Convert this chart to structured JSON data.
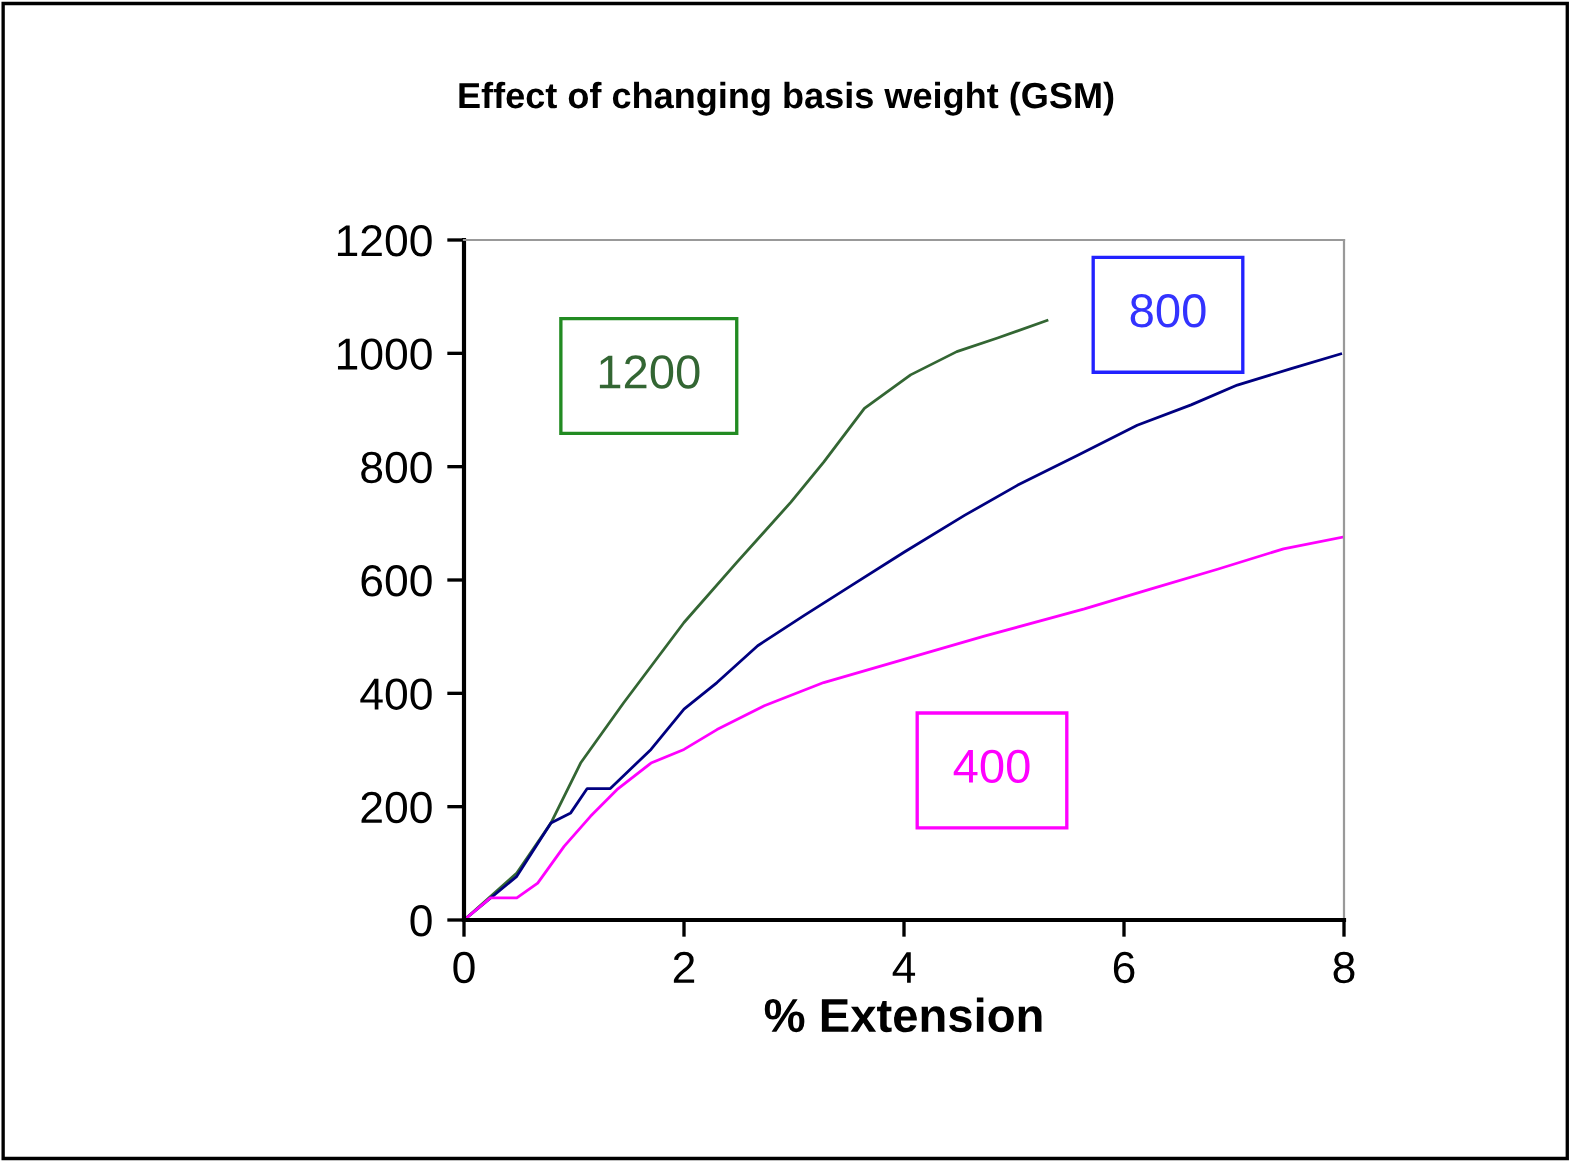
{
  "chart_data": {
    "type": "line",
    "title": "Effect of changing basis weight (GSM)",
    "xlabel": "% Extension",
    "xlim": [
      0,
      8
    ],
    "xticks": [
      0,
      2,
      4,
      6,
      8
    ],
    "ylim": [
      0,
      1200
    ],
    "yticks": [
      0,
      200,
      400,
      600,
      800,
      1000,
      1200
    ],
    "grid": false,
    "legend": false,
    "marker": "none",
    "line_style": "solid",
    "series": [
      {
        "name": "1200",
        "color": "#336633",
        "x": [
          0,
          0.48,
          0.79,
          1.06,
          1.45,
          2.0,
          2.48,
          2.97,
          3.27,
          3.64,
          4.06,
          4.48,
          4.85,
          5.3
        ],
        "values": [
          0,
          83,
          171,
          277,
          383,
          525,
          631,
          737,
          808,
          903,
          962,
          1003,
          1027,
          1058
        ]
      },
      {
        "name": "800",
        "color": "#000080",
        "x": [
          0,
          0.48,
          0.79,
          0.97,
          1.12,
          1.33,
          1.7,
          2.0,
          2.3,
          2.67,
          3.09,
          3.52,
          4.0,
          4.55,
          5.03,
          5.58,
          6.12,
          6.61,
          7.03,
          7.52,
          7.97
        ],
        "values": [
          0,
          77,
          171,
          189,
          232,
          232,
          301,
          372,
          419,
          484,
          537,
          590,
          649,
          714,
          767,
          820,
          873,
          909,
          944,
          973,
          999
        ]
      },
      {
        "name": "400",
        "color": "#ff00ff",
        "x": [
          0,
          0.24,
          0.48,
          0.67,
          0.91,
          1.15,
          1.39,
          1.7,
          2.0,
          2.3,
          2.73,
          3.27,
          4.0,
          4.73,
          5.64,
          6.24,
          6.85,
          7.45,
          8.0
        ],
        "values": [
          0,
          39,
          39,
          65,
          130,
          183,
          230,
          277,
          301,
          336,
          378,
          419,
          460,
          501,
          549,
          584,
          619,
          655,
          676
        ]
      }
    ]
  }
}
